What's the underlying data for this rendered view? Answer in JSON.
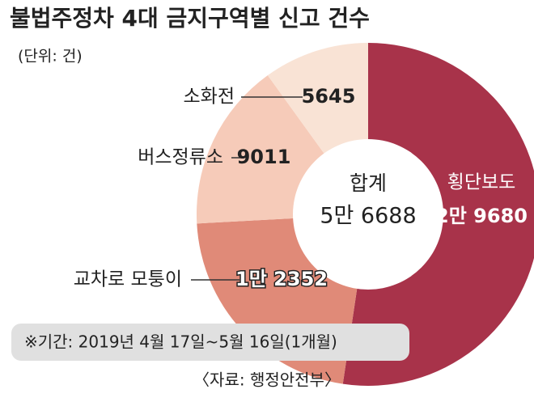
{
  "chart_data": {
    "type": "donut",
    "title": "불법주정차 4대 금지구역별 신고 건수",
    "unit": "(단위: 건)",
    "categories": [
      "횡단보도",
      "교차로 모퉁이",
      "버스정류소",
      "소화전"
    ],
    "values": [
      29680,
      12352,
      9011,
      5645
    ],
    "value_labels": [
      "2만 9680",
      "1만 2352",
      "9011",
      "5645"
    ],
    "colors": [
      "#a8334a",
      "#e08a78",
      "#f6cbb9",
      "#f9e3d5"
    ],
    "center_title": "합계",
    "total": 56688,
    "total_label": "5만 6688",
    "period": "※기간: 2019년 4월 17일~5월 16일(1개월)",
    "source": "〈자료: 행정안전부〉"
  }
}
